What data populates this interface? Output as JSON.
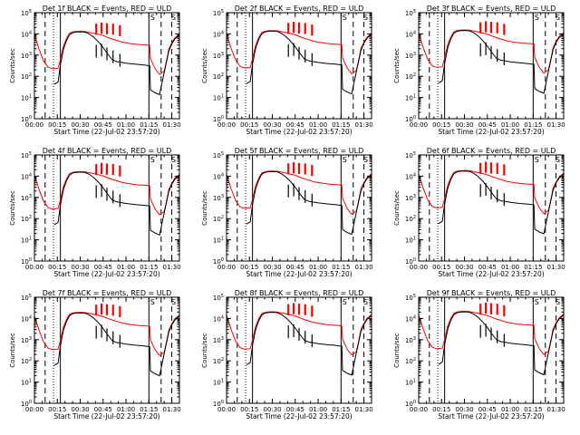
{
  "chart_data": {
    "type": "line",
    "layout": "3x3 grid",
    "y_scale": "log",
    "ylim": [
      1,
      100000
    ],
    "xlim": [
      "00:00",
      "01:35"
    ],
    "xlabel": "Start Time (22-Jul-02 23:57:20)",
    "ylabel": "Counts/sec",
    "x_ticks": [
      "00:00",
      "00:15",
      "00:30",
      "00:45",
      "01:00",
      "01:15",
      "01:30"
    ],
    "y_ticks": [
      {
        "base": "10",
        "exp": "0"
      },
      {
        "base": "10",
        "exp": "1"
      },
      {
        "base": "10",
        "exp": "2"
      },
      {
        "base": "10",
        "exp": "3"
      },
      {
        "base": "10",
        "exp": "4"
      },
      {
        "base": "10",
        "exp": "5"
      }
    ],
    "series_colors": {
      "events": "#000000",
      "uld": "#ff0000"
    },
    "annotation_marks": [
      "S",
      "S"
    ],
    "panels": [
      {
        "title": "Det 1f BLACK = Events, RED = ULD"
      },
      {
        "title": "Det 2f BLACK = Events, RED = ULD"
      },
      {
        "title": "Det 3f BLACK = Events, RED = ULD"
      },
      {
        "title": "Det 4f BLACK = Events, RED = ULD"
      },
      {
        "title": "Det 5f BLACK = Events, RED = ULD"
      },
      {
        "title": "Det 6f BLACK = Events, RED = ULD"
      },
      {
        "title": "Det 7f BLACK = Events, RED = ULD"
      },
      {
        "title": "Det 8f BLACK = Events, RED = ULD"
      },
      {
        "title": "Det 9f BLACK = Events, RED = ULD"
      }
    ],
    "events_series": {
      "x_minutes": [
        0,
        4,
        8,
        11,
        13,
        15.5,
        17,
        19,
        21,
        23,
        25,
        27,
        30,
        33,
        36,
        39,
        42,
        45,
        48,
        51,
        54,
        57,
        60,
        63,
        66,
        69,
        72,
        74,
        75.5,
        76,
        79,
        82,
        85,
        87,
        88,
        90,
        92,
        95
      ],
      "y": [
        null,
        null,
        null,
        null,
        55,
        70,
        450,
        2500,
        6500,
        12000,
        15000,
        16000,
        16500,
        16000,
        13000,
        9000,
        5500,
        3000,
        1500,
        800,
        650,
        600,
        550,
        520,
        490,
        470,
        450,
        430,
        420,
        30,
        22,
        18,
        200,
        900,
        2000,
        4500,
        7500,
        12000
      ]
    },
    "uld_series": {
      "x_minutes": [
        0,
        3,
        6,
        9,
        12,
        15.5,
        17,
        19,
        21,
        23,
        25,
        27,
        30,
        33,
        36,
        39,
        42,
        45,
        48,
        51,
        54,
        57,
        60,
        63,
        66,
        69,
        72,
        74,
        75.5,
        76,
        79,
        82,
        85,
        87,
        88,
        90,
        92,
        95
      ],
      "y": [
        12000,
        2500,
        700,
        350,
        300,
        320,
        800,
        3500,
        8000,
        14000,
        16000,
        17000,
        17500,
        17000,
        15500,
        14000,
        12500,
        11000,
        9000,
        7500,
        6500,
        5500,
        5000,
        4600,
        4300,
        4100,
        4000,
        3900,
        3800,
        900,
        300,
        160,
        230,
        1000,
        2500,
        5000,
        8500,
        13000
      ]
    },
    "spikes": {
      "x_minutes": [
        40.5,
        44,
        47.5,
        51.5,
        56
      ],
      "uld_peak": [
        40000,
        45000,
        42000,
        40000,
        34000
      ],
      "events_peak": [
        4000,
        4500,
        3000,
        2200,
        1500
      ]
    },
    "vertical_lines": {
      "solid_minutes": [
        17,
        75
      ],
      "dashed_minutes": [
        7,
        83,
        90
      ],
      "dotted_minutes": [
        12.5
      ]
    }
  }
}
